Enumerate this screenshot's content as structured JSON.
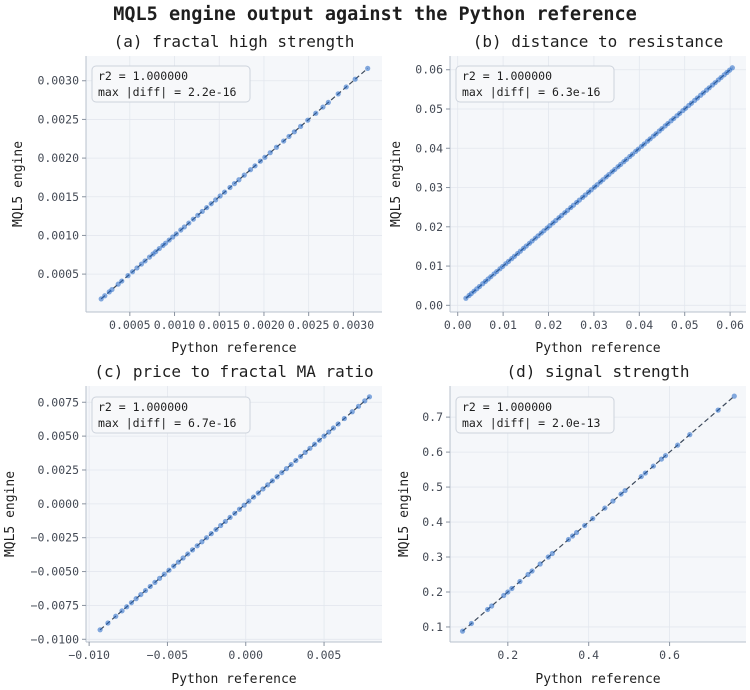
{
  "figure": {
    "title": "MQL5 engine output against the Python reference"
  },
  "colors": {
    "point": "#2166c4",
    "identity_line": "#3d4a5c",
    "panel_bg": "#f5f7fa",
    "grid": "#e3e7ee"
  },
  "chart_data": [
    {
      "type": "scatter",
      "title": "(a) fractal high strength",
      "xlabel": "Python reference",
      "ylabel": "MQL5 engine",
      "xlim": [
        1e-05,
        0.00332
      ],
      "ylim": [
        1e-05,
        0.00332
      ],
      "xticks": [
        0.0005,
        0.001,
        0.0015,
        0.002,
        0.0025,
        0.003
      ],
      "xtick_labels": [
        "0.0005",
        "0.0010",
        "0.0015",
        "0.0020",
        "0.0025",
        "0.0030"
      ],
      "yticks": [
        0.0005,
        0.001,
        0.0015,
        0.002,
        0.0025,
        0.003
      ],
      "ytick_labels": [
        "0.0005",
        "0.0010",
        "0.0015",
        "0.0020",
        "0.0025",
        "0.0030"
      ],
      "grid": true,
      "identity_line": true,
      "annotation": [
        "r2 = 1.000000",
        "max |diff| = 2.2e-16"
      ],
      "x": [
        0.00018,
        0.00022,
        0.00027,
        0.0003,
        0.00037,
        0.00041,
        0.00048,
        0.00053,
        0.00058,
        0.00063,
        0.00067,
        0.00072,
        0.00076,
        0.00079,
        0.00083,
        0.00087,
        0.0009,
        0.00094,
        0.00098,
        0.00102,
        0.00107,
        0.00111,
        0.00116,
        0.00121,
        0.00126,
        0.00131,
        0.00136,
        0.00141,
        0.00146,
        0.00151,
        0.00156,
        0.00162,
        0.00167,
        0.00172,
        0.00178,
        0.00185,
        0.0019,
        0.00196,
        0.00201,
        0.00207,
        0.00214,
        0.00222,
        0.00228,
        0.00234,
        0.00241,
        0.00249,
        0.00258,
        0.00266,
        0.00272,
        0.00283,
        0.00292,
        0.00302,
        0.00316
      ],
      "y": [
        0.00018,
        0.00022,
        0.00027,
        0.0003,
        0.00037,
        0.00041,
        0.00048,
        0.00053,
        0.00058,
        0.00063,
        0.00067,
        0.00072,
        0.00076,
        0.00079,
        0.00083,
        0.00087,
        0.0009,
        0.00094,
        0.00098,
        0.00102,
        0.00107,
        0.00111,
        0.00116,
        0.00121,
        0.00126,
        0.00131,
        0.00136,
        0.00141,
        0.00146,
        0.00151,
        0.00156,
        0.00162,
        0.00167,
        0.00172,
        0.00178,
        0.00185,
        0.0019,
        0.00196,
        0.00201,
        0.00207,
        0.00214,
        0.00222,
        0.00228,
        0.00234,
        0.00241,
        0.00249,
        0.00258,
        0.00266,
        0.00272,
        0.00283,
        0.00292,
        0.00302,
        0.00316
      ]
    },
    {
      "type": "scatter",
      "title": "(b) distance to resistance",
      "xlabel": "Python reference",
      "ylabel": "MQL5 engine",
      "xlim": [
        -0.0017,
        0.0635
      ],
      "ylim": [
        -0.0017,
        0.0635
      ],
      "xticks": [
        0,
        0.01,
        0.02,
        0.03,
        0.04,
        0.05,
        0.06
      ],
      "xtick_labels": [
        "0.00",
        "0.01",
        "0.02",
        "0.03",
        "0.04",
        "0.05",
        "0.06"
      ],
      "yticks": [
        0,
        0.01,
        0.02,
        0.03,
        0.04,
        0.05,
        0.06
      ],
      "ytick_labels": [
        "0.00",
        "0.01",
        "0.02",
        "0.03",
        "0.04",
        "0.05",
        "0.06"
      ],
      "grid": true,
      "identity_line": true,
      "annotation": [
        "r2 = 1.000000",
        "max |diff| = 6.3e-16"
      ],
      "x": [
        0.0018,
        0.0025,
        0.003,
        0.0036,
        0.0042,
        0.0048,
        0.0055,
        0.0061,
        0.0067,
        0.0073,
        0.008,
        0.0086,
        0.0093,
        0.0099,
        0.0106,
        0.0112,
        0.0119,
        0.0125,
        0.0132,
        0.0138,
        0.0145,
        0.0151,
        0.0158,
        0.0164,
        0.0171,
        0.0177,
        0.0184,
        0.019,
        0.0197,
        0.0203,
        0.021,
        0.0216,
        0.0223,
        0.0229,
        0.0236,
        0.0242,
        0.0249,
        0.0255,
        0.0262,
        0.0268,
        0.0275,
        0.0281,
        0.0288,
        0.0294,
        0.0301,
        0.0307,
        0.0314,
        0.032,
        0.0327,
        0.0333,
        0.034,
        0.0346,
        0.0353,
        0.0359,
        0.0366,
        0.0372,
        0.0379,
        0.0385,
        0.0392,
        0.0398,
        0.0405,
        0.0411,
        0.0418,
        0.0424,
        0.0431,
        0.0437,
        0.0444,
        0.045,
        0.0457,
        0.0463,
        0.047,
        0.0476,
        0.0483,
        0.0489,
        0.0496,
        0.0502,
        0.0509,
        0.0515,
        0.0522,
        0.0528,
        0.0535,
        0.0541,
        0.0548,
        0.0554,
        0.0561,
        0.0567,
        0.0574,
        0.058,
        0.0587,
        0.0593,
        0.0599,
        0.0605
      ],
      "y": [
        0.0018,
        0.0025,
        0.003,
        0.0036,
        0.0042,
        0.0048,
        0.0055,
        0.0061,
        0.0067,
        0.0073,
        0.008,
        0.0086,
        0.0093,
        0.0099,
        0.0106,
        0.0112,
        0.0119,
        0.0125,
        0.0132,
        0.0138,
        0.0145,
        0.0151,
        0.0158,
        0.0164,
        0.0171,
        0.0177,
        0.0184,
        0.019,
        0.0197,
        0.0203,
        0.021,
        0.0216,
        0.0223,
        0.0229,
        0.0236,
        0.0242,
        0.0249,
        0.0255,
        0.0262,
        0.0268,
        0.0275,
        0.0281,
        0.0288,
        0.0294,
        0.0301,
        0.0307,
        0.0314,
        0.032,
        0.0327,
        0.0333,
        0.034,
        0.0346,
        0.0353,
        0.0359,
        0.0366,
        0.0372,
        0.0379,
        0.0385,
        0.0392,
        0.0398,
        0.0405,
        0.0411,
        0.0418,
        0.0424,
        0.0431,
        0.0437,
        0.0444,
        0.045,
        0.0457,
        0.0463,
        0.047,
        0.0476,
        0.0483,
        0.0489,
        0.0496,
        0.0502,
        0.0509,
        0.0515,
        0.0522,
        0.0528,
        0.0535,
        0.0541,
        0.0548,
        0.0554,
        0.0561,
        0.0567,
        0.0574,
        0.058,
        0.0587,
        0.0593,
        0.0599,
        0.0605
      ]
    },
    {
      "type": "scatter",
      "title": "(c) price to fractal MA ratio",
      "xlabel": "Python reference",
      "ylabel": "MQL5 engine",
      "xlim": [
        -0.0102,
        0.0087
      ],
      "ylim": [
        -0.0102,
        0.0087
      ],
      "xticks": [
        -0.01,
        -0.005,
        0,
        0.005
      ],
      "xtick_labels": [
        "−0.010",
        "−0.005",
        "0.000",
        "0.005"
      ],
      "yticks": [
        -0.01,
        -0.0075,
        -0.005,
        -0.0025,
        0,
        0.0025,
        0.005,
        0.0075
      ],
      "ytick_labels": [
        "−0.0100",
        "−0.0075",
        "−0.0050",
        "−0.0025",
        "0.0000",
        "0.0025",
        "0.0050",
        "0.0075"
      ],
      "grid": true,
      "identity_line": true,
      "annotation": [
        "r2 = 1.000000",
        "max |diff| = 6.7e-16"
      ],
      "x": [
        -0.0093,
        -0.0088,
        -0.0083,
        -0.0079,
        -0.0076,
        -0.0073,
        -0.007,
        -0.0067,
        -0.0064,
        -0.0061,
        -0.0058,
        -0.0055,
        -0.0052,
        -0.0049,
        -0.0046,
        -0.0043,
        -0.004,
        -0.0037,
        -0.0034,
        -0.0031,
        -0.0028,
        -0.0025,
        -0.0022,
        -0.0019,
        -0.0016,
        -0.0013,
        -0.001,
        -0.0007,
        -0.0004,
        -0.0001,
        0.0002,
        0.0005,
        0.0008,
        0.0011,
        0.0014,
        0.0017,
        0.002,
        0.0023,
        0.0026,
        0.0029,
        0.0032,
        0.0035,
        0.0038,
        0.0041,
        0.0044,
        0.0047,
        0.005,
        0.0053,
        0.0056,
        0.0059,
        0.0063,
        0.0068,
        0.0072,
        0.0076,
        0.0079
      ],
      "y": [
        -0.0093,
        -0.0088,
        -0.0083,
        -0.0079,
        -0.0076,
        -0.0073,
        -0.007,
        -0.0067,
        -0.0064,
        -0.0061,
        -0.0058,
        -0.0055,
        -0.0052,
        -0.0049,
        -0.0046,
        -0.0043,
        -0.004,
        -0.0037,
        -0.0034,
        -0.0031,
        -0.0028,
        -0.0025,
        -0.0022,
        -0.0019,
        -0.0016,
        -0.0013,
        -0.001,
        -0.0007,
        -0.0004,
        -0.0001,
        0.0002,
        0.0005,
        0.0008,
        0.0011,
        0.0014,
        0.0017,
        0.002,
        0.0023,
        0.0026,
        0.0029,
        0.0032,
        0.0035,
        0.0038,
        0.0041,
        0.0044,
        0.0047,
        0.005,
        0.0053,
        0.0056,
        0.0059,
        0.0063,
        0.0068,
        0.0072,
        0.0076,
        0.0079
      ]
    },
    {
      "type": "scatter",
      "title": "(d) signal strength",
      "xlabel": "Python reference",
      "ylabel": "MQL5 engine",
      "xlim": [
        0.057,
        0.789
      ],
      "ylim": [
        0.057,
        0.789
      ],
      "xticks": [
        0.2,
        0.4,
        0.6
      ],
      "xtick_labels": [
        "0.2",
        "0.4",
        "0.6"
      ],
      "yticks": [
        0.1,
        0.2,
        0.3,
        0.4,
        0.5,
        0.6,
        0.7
      ],
      "ytick_labels": [
        "0.1",
        "0.2",
        "0.3",
        "0.4",
        "0.5",
        "0.6",
        "0.7"
      ],
      "grid": true,
      "identity_line": true,
      "annotation": [
        "r2 = 1.000000",
        "max |diff| = 2.0e-13"
      ],
      "x": [
        0.088,
        0.11,
        0.15,
        0.16,
        0.19,
        0.2,
        0.21,
        0.23,
        0.25,
        0.26,
        0.28,
        0.3,
        0.31,
        0.35,
        0.36,
        0.37,
        0.39,
        0.41,
        0.44,
        0.46,
        0.48,
        0.49,
        0.53,
        0.54,
        0.56,
        0.58,
        0.59,
        0.62,
        0.65,
        0.72,
        0.76
      ],
      "y": [
        0.088,
        0.11,
        0.15,
        0.16,
        0.19,
        0.2,
        0.21,
        0.23,
        0.25,
        0.26,
        0.28,
        0.3,
        0.31,
        0.35,
        0.36,
        0.37,
        0.39,
        0.41,
        0.44,
        0.46,
        0.48,
        0.49,
        0.53,
        0.54,
        0.56,
        0.58,
        0.59,
        0.62,
        0.65,
        0.72,
        0.76
      ]
    }
  ]
}
